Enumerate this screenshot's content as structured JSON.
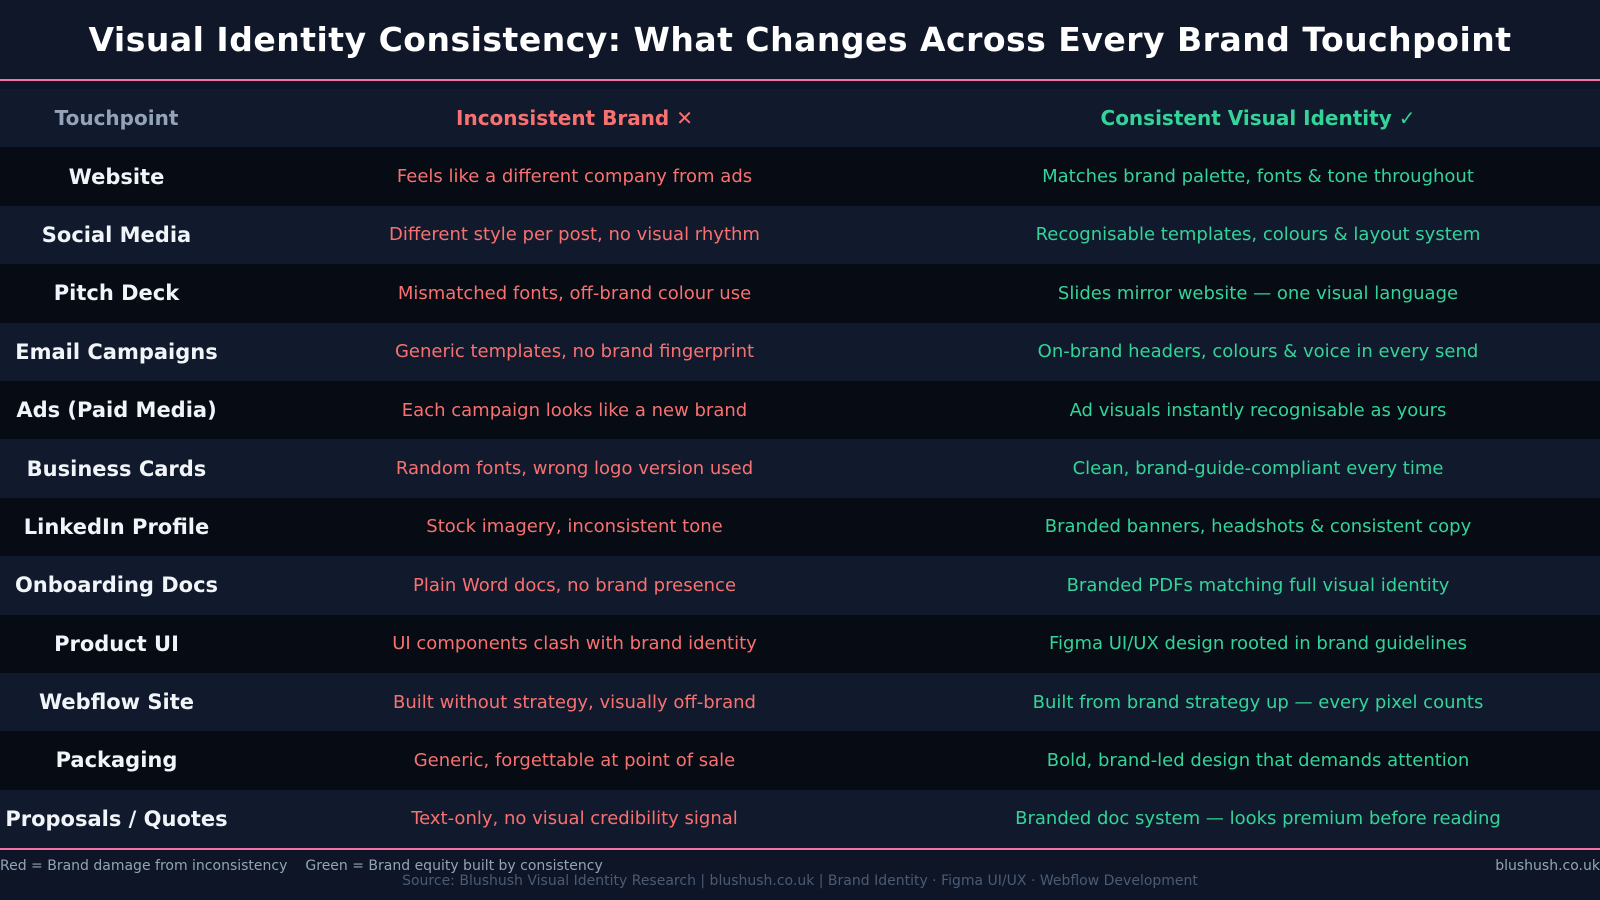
{
  "title": "Visual Identity Consistency: What Changes Across Every Brand Touchpoint",
  "colors": {
    "background": "#0d1526",
    "accent_line": "#f472a6",
    "inconsistent": "#f87171",
    "consistent": "#34d399",
    "touchpoint_text": "#f1f5f9",
    "header_muted": "#94a3b8"
  },
  "table": {
    "headers": {
      "touchpoint": "Touchpoint",
      "inconsistent": "Inconsistent Brand ✕",
      "consistent": "Consistent Visual Identity ✓"
    },
    "rows": [
      {
        "touchpoint": "Website",
        "inconsistent": "Feels like a different company from ads",
        "consistent": "Matches brand palette, fonts & tone throughout"
      },
      {
        "touchpoint": "Social Media",
        "inconsistent": "Different style per post, no visual rhythm",
        "consistent": "Recognisable templates, colours & layout system"
      },
      {
        "touchpoint": "Pitch Deck",
        "inconsistent": "Mismatched fonts, off-brand colour use",
        "consistent": "Slides mirror website — one visual language"
      },
      {
        "touchpoint": "Email Campaigns",
        "inconsistent": "Generic templates, no brand fingerprint",
        "consistent": "On-brand headers, colours & voice in every send"
      },
      {
        "touchpoint": "Ads (Paid Media)",
        "inconsistent": "Each campaign looks like a new brand",
        "consistent": "Ad visuals instantly recognisable as yours"
      },
      {
        "touchpoint": "Business Cards",
        "inconsistent": "Random fonts, wrong logo version used",
        "consistent": "Clean, brand-guide-compliant every time"
      },
      {
        "touchpoint": "LinkedIn Profile",
        "inconsistent": "Stock imagery, inconsistent tone",
        "consistent": "Branded banners, headshots & consistent copy"
      },
      {
        "touchpoint": "Onboarding Docs",
        "inconsistent": "Plain Word docs, no brand presence",
        "consistent": "Branded PDFs matching full visual identity"
      },
      {
        "touchpoint": "Product UI",
        "inconsistent": "UI components clash with brand identity",
        "consistent": "Figma UI/UX design rooted in brand guidelines"
      },
      {
        "touchpoint": "Webflow Site",
        "inconsistent": "Built without strategy, visually off-brand",
        "consistent": "Built from brand strategy up — every pixel counts"
      },
      {
        "touchpoint": "Packaging",
        "inconsistent": "Generic, forgettable at point of sale",
        "consistent": "Bold, brand-led design that demands attention"
      },
      {
        "touchpoint": "Proposals / Quotes",
        "inconsistent": "Text-only, no visual credibility signal",
        "consistent": "Branded doc system — looks premium before reading"
      }
    ]
  },
  "footer": {
    "legend_red": "Red = Brand damage from inconsistency",
    "legend_green": "Green = Brand equity built by consistency",
    "source": "Source: Blushush Visual Identity Research  |  blushush.co.uk  |  Brand Identity · Figma UI/UX · Webflow Development",
    "site": "blushush.co.uk"
  }
}
